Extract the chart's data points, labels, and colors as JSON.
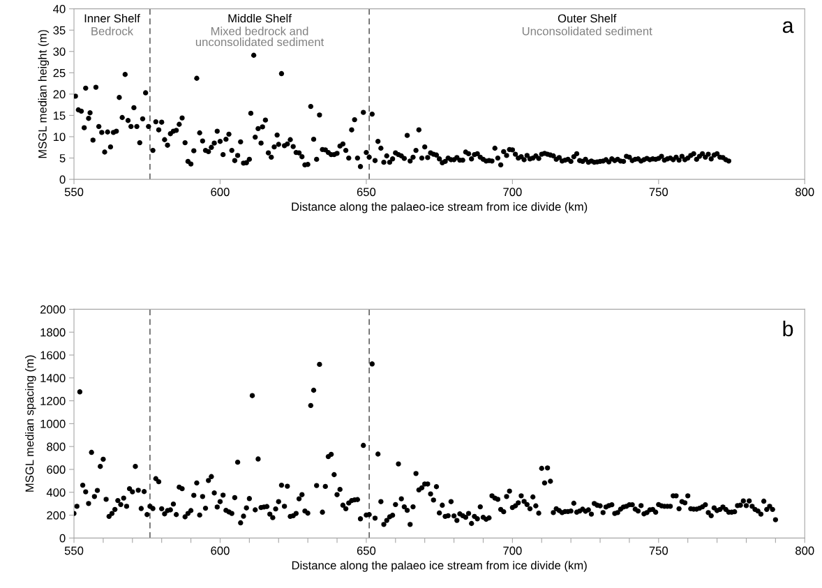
{
  "chart_data": [
    {
      "type": "scatter",
      "title": "a",
      "xlabel": "Distance along the palaeo-ice stream from ice divide (km)",
      "ylabel": "MSGL median height (m)",
      "xlim": [
        550,
        800
      ],
      "xticks": [
        550,
        600,
        650,
        700,
        750,
        800
      ],
      "ylim": [
        0,
        40
      ],
      "yticks": [
        0,
        5,
        10,
        15,
        20,
        25,
        30,
        35,
        40
      ],
      "grid": false,
      "marker": "circle",
      "ref_lines": [
        {
          "axis": "x",
          "value": 576,
          "color": "#404040",
          "line_style": "dashed"
        },
        {
          "axis": "x",
          "value": 651,
          "color": "#404040",
          "line_style": "dashed"
        }
      ],
      "annotations": [
        "Inner Shelf",
        "Bedrock",
        "Middle Shelf",
        "Mixed bedrock and\nunconsolidated sediment",
        "Outer Shelf",
        "Unconsolidated sediment"
      ],
      "series": [
        {
          "color": "#000000",
          "x": [
            550.5,
            551.5,
            552.5,
            553.5,
            554,
            555,
            555.5,
            556.5,
            557.5,
            558.5,
            559.5,
            560.5,
            561.5,
            562.5,
            563.5,
            564.5,
            565.5,
            566.5,
            567.5,
            568.5,
            569.5,
            570.5,
            571.5,
            572.5,
            573.5,
            574.5,
            575.5,
            577,
            578,
            579,
            580,
            581,
            582,
            583,
            584,
            585,
            586,
            587,
            588,
            589,
            590,
            591,
            592,
            593,
            594,
            595,
            596,
            597,
            598,
            599,
            600,
            601,
            602,
            603,
            604,
            605,
            606,
            607,
            608,
            609,
            610,
            610.5,
            611.5,
            612,
            613,
            614,
            614.5,
            615.5,
            616.5,
            617.5,
            618.5,
            619.5,
            620,
            621,
            622,
            623,
            624,
            625,
            626,
            627,
            628,
            629,
            630,
            631,
            632,
            633,
            634,
            635,
            636,
            637,
            638,
            639,
            640,
            641,
            642,
            643,
            644,
            645,
            646,
            647,
            648,
            649,
            650,
            651,
            652,
            653,
            654,
            655,
            656,
            657,
            658,
            659,
            660,
            661,
            662,
            663,
            664,
            665,
            666,
            667,
            668,
            669,
            670,
            671,
            672,
            673,
            674,
            675,
            676,
            677,
            678,
            679,
            680,
            681,
            682,
            683,
            684,
            685,
            686,
            687,
            688,
            689,
            690,
            691,
            692,
            693,
            694,
            695,
            696,
            697,
            698,
            699,
            700,
            701,
            702,
            703,
            704,
            705,
            706,
            707,
            708,
            709,
            710,
            711,
            712,
            713,
            714,
            715,
            716,
            717,
            718,
            719,
            720,
            721,
            722,
            723,
            724,
            725,
            726,
            727,
            728,
            729,
            730,
            731,
            732,
            733,
            734,
            735,
            736,
            737,
            738,
            739,
            740,
            741,
            742,
            743,
            744,
            745,
            746,
            747,
            748,
            749,
            750,
            751,
            752,
            753,
            754,
            755,
            756,
            757,
            758,
            759,
            760,
            761,
            762,
            763,
            764,
            765,
            766,
            767,
            768,
            769,
            770,
            771,
            772,
            773,
            774
          ],
          "values": [
            19.5,
            16.3,
            16,
            12.1,
            21.4,
            14.3,
            15.6,
            9.2,
            21.6,
            12.4,
            11,
            6.4,
            11.1,
            7.6,
            11,
            11.3,
            19.2,
            14.5,
            24.6,
            13.8,
            12.4,
            16.8,
            12.4,
            8.6,
            14.2,
            20.3,
            12.4,
            6.8,
            13.5,
            11.6,
            13.4,
            9.3,
            8,
            10.7,
            11.3,
            11.5,
            12.9,
            14.4,
            8.6,
            4.2,
            3.6,
            6.7,
            23.7,
            10.9,
            9,
            6.8,
            6.5,
            7.5,
            8.5,
            11.3,
            8.9,
            5.8,
            9.4,
            10.6,
            6.8,
            4.4,
            5.6,
            8.8,
            3.8,
            3.9,
            4.7,
            15.5,
            29.1,
            9.9,
            11.9,
            8.5,
            12.3,
            13.9,
            6.2,
            5.2,
            7.6,
            10.4,
            8.2,
            24.8,
            7.9,
            8.3,
            9.3,
            7.7,
            6.3,
            6.2,
            5.3,
            3.4,
            3.5,
            17.1,
            9.4,
            4.7,
            15.1,
            7,
            6.9,
            6.3,
            5.8,
            5.8,
            6.1,
            7.8,
            8.3,
            6.8,
            5,
            11.6,
            14,
            5,
            3,
            15.7,
            6.3,
            5.2,
            15.3,
            4.4,
            8.9,
            7.3,
            4,
            5.5,
            4,
            4.8,
            6.2,
            5.8,
            5.5,
            4.9,
            10.3,
            4.3,
            5.2,
            6.8,
            11.6,
            5,
            7.6,
            5.1,
            6.2,
            5.9,
            5.7,
            4.8,
            3.9,
            4.2,
            5,
            4.6,
            4.6,
            5.1,
            4.5,
            4.5,
            6.4,
            6,
            4.8,
            5.8,
            6,
            5.2,
            4.7,
            4.3,
            4.4,
            4.3,
            7.3,
            5,
            3.4,
            6.5,
            5.6,
            7,
            6.9,
            5.9,
            5,
            5.3,
            4.6,
            5.6,
            4.8,
            5,
            5.5,
            4.9,
            5.9,
            6.1,
            5.9,
            5.7,
            5.5,
            4.7,
            5.1,
            4.3,
            4.5,
            4.7,
            4.2,
            5.3,
            6,
            4.4,
            4.2,
            4.7,
            4,
            4.3,
            4,
            4.1,
            4.2,
            4.3,
            4.6,
            4.1,
            4.8,
            4.4,
            4.7,
            4.3,
            4.2,
            5.4,
            5.2,
            4.4,
            4.7,
            4.8,
            4.3,
            4.6,
            4.9,
            4.6,
            4.8,
            4.7,
            4.9,
            5.4,
            4.5,
            4.8,
            5,
            4.6,
            5.2,
            4.5,
            5.4,
            4.6,
            5,
            5.6,
            6,
            4.7,
            5.4,
            6,
            5.2,
            5.9,
            4.8,
            5.7,
            6,
            5.2,
            5.1,
            4.6,
            4.3
          ]
        }
      ]
    },
    {
      "type": "scatter",
      "title": "b",
      "xlabel": "Distance along the palaeo ice stream from ice divide (km)",
      "ylabel": "MSGL median spacing (m)",
      "xlim": [
        550,
        800
      ],
      "xticks": [
        550,
        {
          "value": 560,
          "label": null
        },
        {
          "value": 570,
          "label": null
        },
        {
          "value": 580,
          "label": null
        },
        {
          "value": 590,
          "label": null
        },
        600,
        {
          "value": 610,
          "label": null
        },
        {
          "value": 620,
          "label": null
        },
        {
          "value": 630,
          "label": null
        },
        {
          "value": 640,
          "label": null
        },
        650,
        {
          "value": 660,
          "label": null
        },
        {
          "value": 670,
          "label": null
        },
        {
          "value": 680,
          "label": null
        },
        {
          "value": 690,
          "label": null
        },
        700,
        {
          "value": 710,
          "label": null
        },
        {
          "value": 720,
          "label": null
        },
        {
          "value": 730,
          "label": null
        },
        {
          "value": 740,
          "label": null
        },
        750,
        {
          "value": 760,
          "label": null
        },
        {
          "value": 770,
          "label": null
        },
        {
          "value": 780,
          "label": null
        },
        {
          "value": 790,
          "label": null
        },
        800
      ],
      "ylim": [
        0,
        2000
      ],
      "yticks": [
        0,
        200,
        400,
        600,
        800,
        1000,
        1200,
        1400,
        1600,
        1800,
        2000
      ],
      "grid": false,
      "marker": "circle",
      "ref_lines": [
        {
          "axis": "x",
          "value": 576,
          "color": "#404040",
          "line_style": "dashed"
        },
        {
          "axis": "x",
          "value": 651,
          "color": "#404040",
          "line_style": "dashed"
        }
      ],
      "series": [
        {
          "color": "#000000",
          "x": [
            550,
            551,
            552,
            553,
            554,
            555,
            556,
            557,
            558,
            559,
            560,
            561,
            562,
            563,
            564,
            565,
            566,
            567,
            568,
            569,
            570,
            571,
            572,
            573,
            574,
            575,
            576,
            577,
            578,
            579,
            580,
            581,
            582,
            583,
            584,
            585,
            586,
            587,
            588,
            589,
            590,
            591,
            592,
            593,
            594,
            595,
            596,
            597,
            598,
            599,
            600,
            601,
            602,
            603,
            604,
            605,
            606,
            607,
            608,
            609,
            610,
            611,
            612,
            613,
            614,
            615,
            616,
            617,
            618,
            619,
            620,
            621,
            622,
            623,
            624,
            625,
            626,
            627,
            628,
            629,
            630,
            631,
            632,
            633,
            634,
            635,
            636,
            637,
            638,
            639,
            640,
            641,
            642,
            643,
            644,
            645,
            646,
            647,
            648,
            649,
            650,
            651,
            652,
            653,
            654,
            655,
            656,
            657,
            658,
            659,
            660,
            661,
            662,
            663,
            664,
            665,
            666,
            667,
            668,
            669,
            670,
            671,
            672,
            673,
            674,
            675,
            676,
            677,
            678,
            679,
            680,
            681,
            682,
            683,
            684,
            685,
            686,
            687,
            688,
            689,
            690,
            691,
            692,
            693,
            694,
            695,
            696,
            697,
            698,
            699,
            700,
            701,
            702,
            703,
            704,
            705,
            706,
            707,
            708,
            709,
            710,
            711,
            712,
            713,
            714,
            715,
            716,
            717,
            718,
            719,
            720,
            721,
            722,
            723,
            724,
            725,
            726,
            727,
            728,
            729,
            730,
            731,
            732,
            733,
            734,
            735,
            736,
            737,
            738,
            739,
            740,
            741,
            742,
            743,
            744,
            745,
            746,
            747,
            748,
            749,
            750,
            751,
            752,
            753,
            754,
            755,
            756,
            757,
            758,
            759,
            760,
            761,
            762,
            763,
            764,
            765,
            766,
            767,
            768,
            769,
            770,
            771,
            772,
            773,
            774,
            775,
            776,
            777,
            778,
            779,
            780,
            781,
            782,
            783,
            784,
            785,
            786,
            787,
            788,
            789,
            790
          ],
          "values": [
            215,
            277,
            1278,
            462,
            404,
            302,
            749,
            363,
            416,
            626,
            689,
            338,
            189,
            215,
            250,
            328,
            293,
            349,
            277,
            431,
            404,
            626,
            418,
            258,
            406,
            205,
            277,
            258,
            519,
            492,
            256,
            211,
            240,
            246,
            297,
            205,
            445,
            431,
            185,
            215,
            240,
            373,
            482,
            201,
            363,
            261,
            503,
            537,
            394,
            271,
            318,
            375,
            242,
            228,
            215,
            353,
            663,
            133,
            191,
            263,
            345,
            1245,
            246,
            691,
            267,
            271,
            275,
            209,
            178,
            254,
            318,
            462,
            277,
            453,
            189,
            195,
            215,
            343,
            379,
            236,
            217,
            1159,
            1292,
            459,
            1518,
            226,
            451,
            712,
            732,
            554,
            379,
            425,
            287,
            256,
            306,
            328,
            334,
            336,
            168,
            810,
            201,
            205,
            1522,
            174,
            734,
            318,
            119,
            154,
            185,
            199,
            293,
            648,
            343,
            273,
            242,
            119,
            273,
            564,
            421,
            439,
            472,
            472,
            386,
            332,
            449,
            219,
            287,
            189,
            195,
            318,
            193,
            154,
            211,
            195,
            181,
            215,
            127,
            189,
            168,
            273,
            181,
            164,
            176,
            369,
            349,
            338,
            250,
            230,
            363,
            410,
            267,
            281,
            308,
            369,
            320,
            293,
            256,
            359,
            281,
            217,
            609,
            482,
            613,
            496,
            222,
            256,
            240,
            222,
            232,
            232,
            236,
            304,
            226,
            236,
            252,
            234,
            246,
            209,
            302,
            287,
            281,
            222,
            271,
            283,
            291,
            215,
            222,
            252,
            271,
            277,
            291,
            291,
            252,
            236,
            283,
            211,
            222,
            246,
            250,
            226,
            293,
            281,
            277,
            277,
            277,
            369,
            369,
            256,
            318,
            308,
            369,
            256,
            252,
            252,
            261,
            273,
            291,
            222,
            195,
            263,
            240,
            250,
            271,
            250,
            226,
            226,
            230,
            283,
            287,
            324,
            283,
            324,
            277,
            250,
            236,
            209,
            322,
            250,
            277,
            250,
            160
          ]
        }
      ]
    }
  ]
}
